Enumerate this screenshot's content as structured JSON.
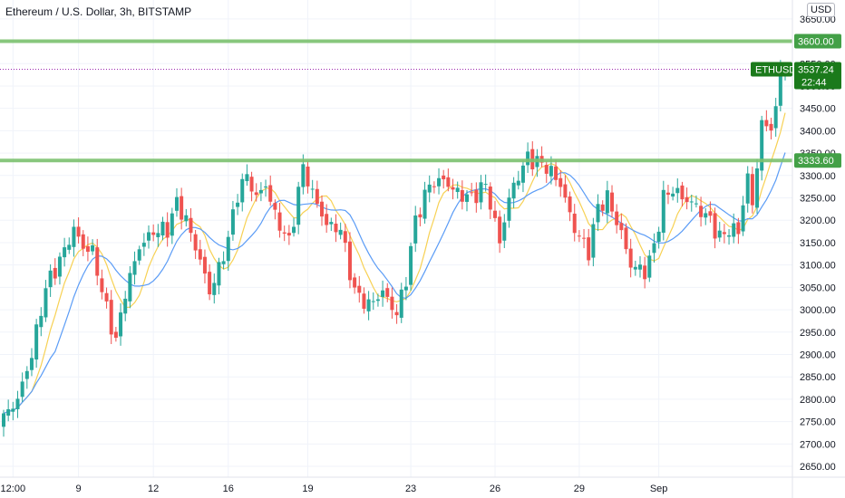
{
  "header": {
    "title": "Ethereum / U.S. Dollar, 3h, BITSTAMP",
    "currency": "USD"
  },
  "colors": {
    "up": "#26a69a",
    "down": "#ef5350",
    "ma_fast": "#f7d154",
    "ma_slow": "#5b9cf6",
    "level_line": "#7cc26f",
    "level_tag": "#43a047",
    "price_tag": "#1b7a1b",
    "last_price_line": "#9c27b0",
    "grid": "#f0f3fa",
    "axis_text": "#131722"
  },
  "chart_data": {
    "type": "candlestick",
    "symbol": "ETHUSD",
    "last_price": 3537.24,
    "countdown": "22:44",
    "ylim": [
      2640,
      3680
    ],
    "y_ticks": [
      2650,
      2700,
      2750,
      2800,
      2850,
      2900,
      2950,
      3000,
      3050,
      3100,
      3150,
      3200,
      3250,
      3300,
      3350,
      3400,
      3450,
      3500,
      3550,
      3600,
      3650
    ],
    "x_ticks": [
      "12:00",
      "9",
      "12",
      "16",
      "19",
      "23",
      "26",
      "29",
      "Sep"
    ],
    "horizontal_levels": [
      3600.0,
      3333.6
    ],
    "level_labels": [
      "3600.00",
      "3333.60"
    ],
    "grid": true,
    "ma_lines": [
      "fast",
      "slow"
    ],
    "anchors": [
      [
        0,
        2760
      ],
      [
        3,
        2800
      ],
      [
        6,
        2900
      ],
      [
        9,
        3050
      ],
      [
        12,
        3110
      ],
      [
        15,
        3180
      ],
      [
        17,
        3140
      ],
      [
        19,
        3130
      ],
      [
        22,
        3000
      ],
      [
        24,
        2930
      ],
      [
        26,
        3040
      ],
      [
        29,
        3140
      ],
      [
        32,
        3175
      ],
      [
        35,
        3180
      ],
      [
        37,
        3240
      ],
      [
        39,
        3200
      ],
      [
        42,
        3110
      ],
      [
        44,
        3040
      ],
      [
        46,
        3090
      ],
      [
        48,
        3160
      ],
      [
        50,
        3260
      ],
      [
        52,
        3300
      ],
      [
        54,
        3250
      ],
      [
        56,
        3280
      ],
      [
        58,
        3210
      ],
      [
        61,
        3150
      ],
      [
        64,
        3320
      ],
      [
        66,
        3260
      ],
      [
        69,
        3190
      ],
      [
        72,
        3180
      ],
      [
        75,
        3040
      ],
      [
        78,
        3010
      ],
      [
        81,
        3040
      ],
      [
        84,
        2990
      ],
      [
        86,
        3070
      ],
      [
        88,
        3200
      ],
      [
        91,
        3280
      ],
      [
        94,
        3290
      ],
      [
        97,
        3260
      ],
      [
        100,
        3250
      ],
      [
        103,
        3280
      ],
      [
        106,
        3150
      ],
      [
        108,
        3250
      ],
      [
        110,
        3300
      ],
      [
        112,
        3340
      ],
      [
        116,
        3320
      ],
      [
        119,
        3280
      ],
      [
        122,
        3180
      ],
      [
        125,
        3130
      ],
      [
        127,
        3230
      ],
      [
        129,
        3250
      ],
      [
        132,
        3170
      ],
      [
        134,
        3100
      ],
      [
        137,
        3085
      ],
      [
        139,
        3140
      ],
      [
        141,
        3250
      ],
      [
        143,
        3270
      ],
      [
        145,
        3250
      ],
      [
        147,
        3240
      ],
      [
        149,
        3220
      ],
      [
        151,
        3200
      ],
      [
        153,
        3160
      ],
      [
        155,
        3180
      ],
      [
        157,
        3175
      ],
      [
        159,
        3300
      ],
      [
        160,
        3230
      ],
      [
        162,
        3420
      ],
      [
        163,
        3400
      ],
      [
        165,
        3440
      ],
      [
        166,
        3537
      ]
    ]
  }
}
